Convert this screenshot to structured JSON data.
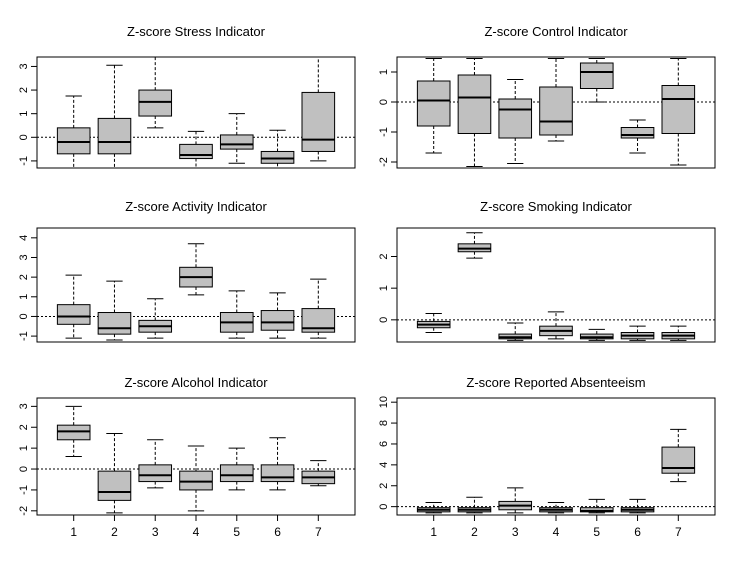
{
  "colors": {
    "box_fill": "#c0c0c0",
    "line": "#000000",
    "reference_line": "#000000"
  },
  "chart_data": [
    {
      "type": "boxplot",
      "title": "Z-score Stress Indicator",
      "categories": [
        "1",
        "2",
        "3",
        "4",
        "5",
        "6",
        "7"
      ],
      "ylim": [
        -1.3,
        3.4
      ],
      "yticks": [
        -1,
        0,
        1,
        2,
        3
      ],
      "ytick_labels": [
        "-1",
        "0",
        "1",
        "2",
        "3"
      ],
      "reference_line": 0,
      "boxes": [
        {
          "min": -1.3,
          "q1": -0.7,
          "median": -0.2,
          "q3": 0.4,
          "max": 1.75
        },
        {
          "min": -1.3,
          "q1": -0.7,
          "median": -0.2,
          "q3": 0.8,
          "max": 3.05
        },
        {
          "min": 0.4,
          "q1": 0.9,
          "median": 1.5,
          "q3": 2.0,
          "max": 3.4
        },
        {
          "min": -1.3,
          "q1": -0.9,
          "median": -0.75,
          "q3": -0.3,
          "max": 0.25
        },
        {
          "min": -1.1,
          "q1": -0.5,
          "median": -0.3,
          "q3": 0.1,
          "max": 1.0
        },
        {
          "min": -1.3,
          "q1": -1.1,
          "median": -0.9,
          "q3": -0.6,
          "max": 0.3
        },
        {
          "min": -1.0,
          "q1": -0.6,
          "median": -0.1,
          "q3": 1.9,
          "max": 3.4
        }
      ]
    },
    {
      "type": "boxplot",
      "title": "Z-score Control Indicator",
      "categories": [
        "1",
        "2",
        "3",
        "4",
        "5",
        "6",
        "7"
      ],
      "ylim": [
        -2.2,
        1.5
      ],
      "yticks": [
        -2,
        -1,
        0,
        1
      ],
      "ytick_labels": [
        "-2",
        "-1",
        "0",
        "1"
      ],
      "reference_line": 0,
      "boxes": [
        {
          "min": -1.7,
          "q1": -0.8,
          "median": 0.05,
          "q3": 0.7,
          "max": 1.45
        },
        {
          "min": -2.15,
          "q1": -1.05,
          "median": 0.15,
          "q3": 0.9,
          "max": 1.45
        },
        {
          "min": -2.05,
          "q1": -1.2,
          "median": -0.25,
          "q3": 0.1,
          "max": 0.75
        },
        {
          "min": -1.3,
          "q1": -1.1,
          "median": -0.65,
          "q3": 0.5,
          "max": 1.45
        },
        {
          "min": 0.0,
          "q1": 0.45,
          "median": 1.0,
          "q3": 1.3,
          "max": 1.45
        },
        {
          "min": -1.7,
          "q1": -1.2,
          "median": -1.1,
          "q3": -0.85,
          "max": -0.6
        },
        {
          "min": -2.1,
          "q1": -1.05,
          "median": 0.1,
          "q3": 0.55,
          "max": 1.45
        }
      ]
    },
    {
      "type": "boxplot",
      "title": "Z-score Activity Indicator",
      "categories": [
        "1",
        "2",
        "3",
        "4",
        "5",
        "6",
        "7"
      ],
      "ylim": [
        -1.3,
        4.5
      ],
      "yticks": [
        -1,
        0,
        1,
        2,
        3,
        4
      ],
      "ytick_labels": [
        "-1",
        "0",
        "1",
        "2",
        "3",
        "4"
      ],
      "reference_line": 0,
      "boxes": [
        {
          "min": -1.1,
          "q1": -0.4,
          "median": 0.0,
          "q3": 0.6,
          "max": 2.1
        },
        {
          "min": -1.2,
          "q1": -0.9,
          "median": -0.6,
          "q3": 0.2,
          "max": 1.8
        },
        {
          "min": -1.1,
          "q1": -0.8,
          "median": -0.5,
          "q3": -0.2,
          "max": 0.9
        },
        {
          "min": 1.1,
          "q1": 1.5,
          "median": 2.0,
          "q3": 2.5,
          "max": 3.7
        },
        {
          "min": -1.1,
          "q1": -0.8,
          "median": -0.3,
          "q3": 0.2,
          "max": 1.3
        },
        {
          "min": -1.1,
          "q1": -0.7,
          "median": -0.3,
          "q3": 0.3,
          "max": 1.2
        },
        {
          "min": -1.1,
          "q1": -0.8,
          "median": -0.6,
          "q3": 0.4,
          "max": 1.9
        }
      ]
    },
    {
      "type": "boxplot",
      "title": "Z-score Smoking Indicator",
      "categories": [
        "1",
        "2",
        "3",
        "4",
        "5",
        "6",
        "7"
      ],
      "ylim": [
        -0.7,
        2.9
      ],
      "yticks": [
        0,
        1,
        2
      ],
      "ytick_labels": [
        "0",
        "1",
        "2"
      ],
      "reference_line": 0,
      "boxes": [
        {
          "min": -0.4,
          "q1": -0.25,
          "median": -0.15,
          "q3": -0.05,
          "max": 0.2
        },
        {
          "min": 1.95,
          "q1": 2.15,
          "median": 2.25,
          "q3": 2.4,
          "max": 2.75
        },
        {
          "min": -0.65,
          "q1": -0.6,
          "median": -0.55,
          "q3": -0.45,
          "max": -0.1
        },
        {
          "min": -0.6,
          "q1": -0.5,
          "median": -0.35,
          "q3": -0.2,
          "max": 0.25
        },
        {
          "min": -0.65,
          "q1": -0.6,
          "median": -0.55,
          "q3": -0.45,
          "max": -0.3
        },
        {
          "min": -0.65,
          "q1": -0.6,
          "median": -0.5,
          "q3": -0.4,
          "max": -0.2
        },
        {
          "min": -0.65,
          "q1": -0.6,
          "median": -0.5,
          "q3": -0.4,
          "max": -0.2
        }
      ]
    },
    {
      "type": "boxplot",
      "title": "Z-score Alcohol Indicator",
      "categories": [
        "1",
        "2",
        "3",
        "4",
        "5",
        "6",
        "7"
      ],
      "ylim": [
        -2.2,
        3.4
      ],
      "yticks": [
        -2,
        -1,
        0,
        1,
        2,
        3
      ],
      "ytick_labels": [
        "-2",
        "-1",
        "0",
        "1",
        "2",
        "3"
      ],
      "reference_line": 0,
      "boxes": [
        {
          "min": 0.6,
          "q1": 1.4,
          "median": 1.8,
          "q3": 2.1,
          "max": 3.0
        },
        {
          "min": -2.1,
          "q1": -1.5,
          "median": -1.1,
          "q3": -0.1,
          "max": 1.7
        },
        {
          "min": -0.9,
          "q1": -0.6,
          "median": -0.3,
          "q3": 0.2,
          "max": 1.4
        },
        {
          "min": -2.0,
          "q1": -1.0,
          "median": -0.6,
          "q3": -0.1,
          "max": 1.1
        },
        {
          "min": -1.0,
          "q1": -0.6,
          "median": -0.3,
          "q3": 0.2,
          "max": 1.0
        },
        {
          "min": -1.0,
          "q1": -0.6,
          "median": -0.4,
          "q3": 0.2,
          "max": 1.5
        },
        {
          "min": -0.8,
          "q1": -0.7,
          "median": -0.4,
          "q3": -0.1,
          "max": 0.4
        }
      ]
    },
    {
      "type": "boxplot",
      "title": "Z-score Reported Absenteeism",
      "categories": [
        "1",
        "2",
        "3",
        "4",
        "5",
        "6",
        "7"
      ],
      "ylim": [
        -0.8,
        10.4
      ],
      "yticks": [
        0,
        2,
        4,
        6,
        8,
        10
      ],
      "ytick_labels": [
        "0",
        "2",
        "4",
        "6",
        "8",
        "10"
      ],
      "reference_line": 0,
      "boxes": [
        {
          "min": -0.6,
          "q1": -0.5,
          "median": -0.3,
          "q3": -0.1,
          "max": 0.4
        },
        {
          "min": -0.6,
          "q1": -0.5,
          "median": -0.3,
          "q3": -0.1,
          "max": 0.9
        },
        {
          "min": -0.6,
          "q1": -0.3,
          "median": 0.1,
          "q3": 0.5,
          "max": 1.8
        },
        {
          "min": -0.6,
          "q1": -0.5,
          "median": -0.3,
          "q3": -0.1,
          "max": 0.4
        },
        {
          "min": -0.6,
          "q1": -0.5,
          "median": -0.4,
          "q3": -0.1,
          "max": 0.7
        },
        {
          "min": -0.6,
          "q1": -0.5,
          "median": -0.3,
          "q3": -0.1,
          "max": 0.7
        },
        {
          "min": 2.4,
          "q1": 3.2,
          "median": 3.7,
          "q3": 5.7,
          "max": 7.4
        }
      ]
    }
  ]
}
